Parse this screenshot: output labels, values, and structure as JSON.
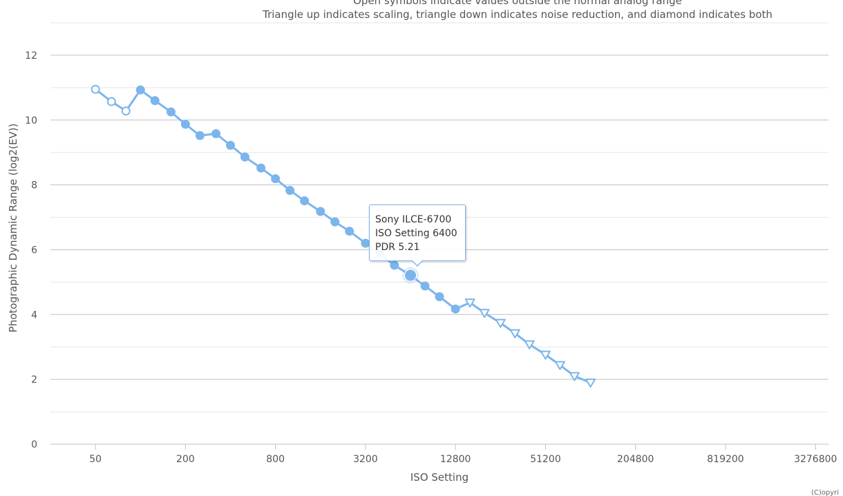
{
  "colors": {
    "series": "#7cb5ec",
    "grid_major": "#c0c0c0",
    "grid_minor": "#e6e6e6",
    "text": "#555555"
  },
  "chart_data": {
    "type": "line",
    "subtitle_lines": [
      "Open symbols indicate values outside the normal analog range",
      "Triangle up indicates scaling, triangle down indicates noise reduction, and diamond indicates both"
    ],
    "xlabel": "ISO Setting",
    "ylabel": "Photographic Dynamic Range (log2(EV))",
    "x_scale": "log2",
    "x_ticks": [
      50,
      200,
      800,
      3200,
      12800,
      51200,
      204800,
      819200,
      3276800
    ],
    "xlim": [
      25,
      4000000
    ],
    "y_ticks": [
      0,
      2,
      4,
      6,
      8,
      10,
      12
    ],
    "ylim": [
      0,
      13
    ],
    "grid": true,
    "legend": "none",
    "series": [
      {
        "name": "Sony ILCE-6700",
        "points": [
          {
            "x": 50,
            "y": 10.95,
            "marker": "open-circle"
          },
          {
            "x": 64,
            "y": 10.57,
            "marker": "open-circle"
          },
          {
            "x": 80,
            "y": 10.28,
            "marker": "open-circle"
          },
          {
            "x": 100,
            "y": 10.93,
            "marker": "circle"
          },
          {
            "x": 125,
            "y": 10.6,
            "marker": "circle"
          },
          {
            "x": 160,
            "y": 10.25,
            "marker": "circle"
          },
          {
            "x": 200,
            "y": 9.87,
            "marker": "circle"
          },
          {
            "x": 250,
            "y": 9.52,
            "marker": "circle"
          },
          {
            "x": 320,
            "y": 9.58,
            "marker": "circle"
          },
          {
            "x": 400,
            "y": 9.22,
            "marker": "circle"
          },
          {
            "x": 500,
            "y": 8.86,
            "marker": "circle"
          },
          {
            "x": 640,
            "y": 8.52,
            "marker": "circle"
          },
          {
            "x": 800,
            "y": 8.19,
            "marker": "circle"
          },
          {
            "x": 1000,
            "y": 7.83,
            "marker": "circle"
          },
          {
            "x": 1250,
            "y": 7.51,
            "marker": "circle"
          },
          {
            "x": 1600,
            "y": 7.18,
            "marker": "circle"
          },
          {
            "x": 2000,
            "y": 6.86,
            "marker": "circle"
          },
          {
            "x": 2500,
            "y": 6.57,
            "marker": "circle"
          },
          {
            "x": 3200,
            "y": 6.2,
            "marker": "circle"
          },
          {
            "x": 4000,
            "y": 5.87,
            "marker": "circle"
          },
          {
            "x": 5000,
            "y": 5.52,
            "marker": "circle"
          },
          {
            "x": 6400,
            "y": 5.21,
            "marker": "circle",
            "highlight": true
          },
          {
            "x": 8000,
            "y": 4.88,
            "marker": "circle"
          },
          {
            "x": 10000,
            "y": 4.55,
            "marker": "circle"
          },
          {
            "x": 12800,
            "y": 4.17,
            "marker": "circle"
          },
          {
            "x": 16000,
            "y": 4.37,
            "marker": "triangle-down"
          },
          {
            "x": 20000,
            "y": 4.05,
            "marker": "triangle-down"
          },
          {
            "x": 25600,
            "y": 3.74,
            "marker": "triangle-down"
          },
          {
            "x": 32000,
            "y": 3.42,
            "marker": "triangle-down"
          },
          {
            "x": 40000,
            "y": 3.08,
            "marker": "triangle-down"
          },
          {
            "x": 51200,
            "y": 2.76,
            "marker": "triangle-down"
          },
          {
            "x": 64000,
            "y": 2.44,
            "marker": "triangle-down"
          },
          {
            "x": 80000,
            "y": 2.1,
            "marker": "triangle-down"
          },
          {
            "x": 102400,
            "y": 1.9,
            "marker": "triangle-down"
          }
        ]
      }
    ],
    "tooltip": {
      "line1": "Sony ILCE-6700",
      "line2": "ISO Setting 6400",
      "line3": "PDR 5.21"
    },
    "credit": "(C)opyri"
  }
}
